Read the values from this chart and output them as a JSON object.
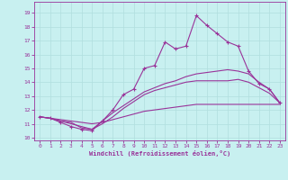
{
  "xlabel": "Windchill (Refroidissement éolien,°C)",
  "background_color": "#c8f0f0",
  "grid_color": "#b0dede",
  "line_color": "#993399",
  "x_ticks": [
    0,
    1,
    2,
    3,
    4,
    5,
    6,
    7,
    8,
    9,
    10,
    11,
    12,
    13,
    14,
    15,
    16,
    17,
    18,
    19,
    20,
    21,
    22,
    23
  ],
  "y_ticks": [
    10,
    11,
    12,
    13,
    14,
    15,
    16,
    17,
    18,
    19
  ],
  "xlim": [
    -0.5,
    23.5
  ],
  "ylim": [
    9.8,
    19.8
  ],
  "lines": [
    {
      "x": [
        0,
        1,
        2,
        3,
        4,
        5,
        6,
        7,
        8,
        9,
        10,
        11,
        12,
        13,
        14,
        15,
        16,
        17,
        18,
        19,
        20,
        21,
        22,
        23
      ],
      "y": [
        11.5,
        11.4,
        11.1,
        10.8,
        10.6,
        10.5,
        11.2,
        12.0,
        13.1,
        13.5,
        15.0,
        15.2,
        16.9,
        16.4,
        16.6,
        18.8,
        18.1,
        17.5,
        16.9,
        16.6,
        14.8,
        13.9,
        13.5,
        12.5
      ],
      "marker": "+",
      "markersize": 3.5
    },
    {
      "x": [
        0,
        1,
        2,
        3,
        4,
        5,
        6,
        7,
        8,
        9,
        10,
        11,
        12,
        13,
        14,
        15,
        16,
        17,
        18,
        19,
        20,
        21,
        22,
        23
      ],
      "y": [
        11.5,
        11.4,
        11.2,
        11.1,
        10.7,
        10.6,
        11.2,
        11.8,
        12.3,
        12.8,
        13.3,
        13.6,
        13.9,
        14.1,
        14.4,
        14.6,
        14.7,
        14.8,
        14.9,
        14.8,
        14.6,
        14.0,
        13.5,
        12.5
      ],
      "marker": null,
      "markersize": null
    },
    {
      "x": [
        0,
        1,
        2,
        3,
        4,
        5,
        6,
        7,
        8,
        9,
        10,
        11,
        12,
        13,
        14,
        15,
        16,
        17,
        18,
        19,
        20,
        21,
        22,
        23
      ],
      "y": [
        11.5,
        11.4,
        11.3,
        11.2,
        11.1,
        11.0,
        11.1,
        11.3,
        11.5,
        11.7,
        11.9,
        12.0,
        12.1,
        12.2,
        12.3,
        12.4,
        12.4,
        12.4,
        12.4,
        12.4,
        12.4,
        12.4,
        12.4,
        12.4
      ],
      "marker": null,
      "markersize": null
    },
    {
      "x": [
        0,
        1,
        2,
        3,
        4,
        5,
        6,
        7,
        8,
        9,
        10,
        11,
        12,
        13,
        14,
        15,
        16,
        17,
        18,
        19,
        20,
        21,
        22,
        23
      ],
      "y": [
        11.5,
        11.4,
        11.2,
        11.0,
        10.8,
        10.6,
        11.0,
        11.5,
        12.1,
        12.6,
        13.1,
        13.4,
        13.6,
        13.8,
        14.0,
        14.1,
        14.1,
        14.1,
        14.1,
        14.2,
        14.0,
        13.6,
        13.2,
        12.5
      ],
      "marker": null,
      "markersize": null
    }
  ]
}
